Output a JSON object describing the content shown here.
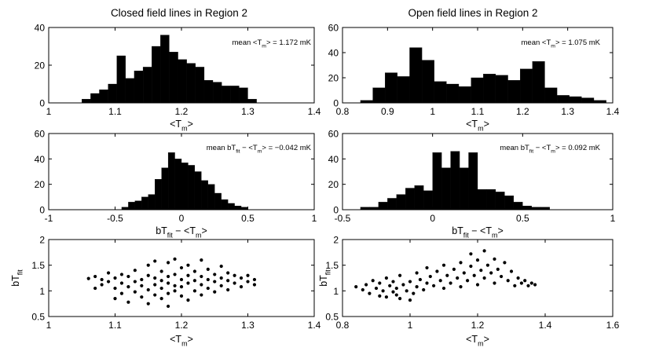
{
  "chart_data": [
    {
      "type": "bar",
      "title": "Closed field lines in Region 2",
      "xlabel": "<T_m>",
      "annotation": "mean <T_m> = 1.172 mK",
      "xlim": [
        1,
        1.4
      ],
      "ylim": [
        0,
        40
      ],
      "xticks": [
        1,
        1.1,
        1.2,
        1.3,
        1.4
      ],
      "yticks": [
        0,
        20,
        40
      ],
      "bin_width": 0.01316,
      "bin_starts": [
        1.05,
        1.0632,
        1.0763,
        1.0895,
        1.1026,
        1.1158,
        1.1289,
        1.1421,
        1.1553,
        1.1684,
        1.1816,
        1.1947,
        1.2079,
        1.2211,
        1.2342,
        1.2474,
        1.2605,
        1.2737,
        1.2868,
        1.3
      ],
      "values": [
        2,
        5,
        7,
        10,
        25,
        13,
        17,
        19,
        30,
        36,
        27,
        23,
        21,
        19,
        12,
        11,
        9,
        9,
        8,
        2
      ]
    },
    {
      "type": "bar",
      "title": "Open field lines in Region 2",
      "xlabel": "<T_m>",
      "annotation": "mean <T_m> = 1.075 mK",
      "xlim": [
        0.8,
        1.4
      ],
      "ylim": [
        0,
        60
      ],
      "xticks": [
        0.8,
        0.9,
        1,
        1.1,
        1.2,
        1.3,
        1.4
      ],
      "yticks": [
        0,
        20,
        40,
        60
      ],
      "bin_width": 0.02727,
      "bin_starts": [
        0.84,
        0.8673,
        0.8945,
        0.9218,
        0.9491,
        0.9764,
        1.0036,
        1.0309,
        1.0582,
        1.0855,
        1.1127,
        1.14,
        1.1673,
        1.1945,
        1.2218,
        1.2491,
        1.2764,
        1.3036,
        1.3309,
        1.3582
      ],
      "values": [
        2,
        12,
        24,
        21,
        44,
        34,
        17,
        15,
        13,
        20,
        23,
        22,
        18,
        27,
        33,
        12,
        6,
        5,
        4,
        2
      ]
    },
    {
      "type": "bar",
      "xlabel": "bT_fit − <T_m>",
      "annotation": "mean bT_fit − <T_m> = −0.042 mK",
      "xlim": [
        -1,
        1
      ],
      "ylim": [
        0,
        60
      ],
      "xticks": [
        -1,
        -0.5,
        0,
        0.5,
        1
      ],
      "yticks": [
        0,
        20,
        40,
        60
      ],
      "bin_width": 0.05,
      "bin_starts": [
        -0.45,
        -0.4,
        -0.35,
        -0.3,
        -0.25,
        -0.2,
        -0.15,
        -0.1,
        -0.05,
        0,
        0.05,
        0.1,
        0.15,
        0.2,
        0.25,
        0.3,
        0.35,
        0.4,
        0.45
      ],
      "values": [
        2,
        6,
        7,
        10,
        12,
        24,
        33,
        45,
        40,
        37,
        35,
        30,
        23,
        20,
        13,
        8,
        5,
        3,
        2
      ]
    },
    {
      "type": "bar",
      "xlabel": "bT_fit − <T_m>",
      "annotation": "mean bT_fit − <T_m> = 0.092 mK",
      "xlim": [
        -0.5,
        1
      ],
      "ylim": [
        0,
        60
      ],
      "xticks": [
        -0.5,
        0,
        0.5,
        1
      ],
      "yticks": [
        0,
        20,
        40,
        60
      ],
      "bin_width": 0.05,
      "bin_starts": [
        -0.4,
        -0.35,
        -0.3,
        -0.25,
        -0.2,
        -0.15,
        -0.1,
        -0.05,
        0,
        0.05,
        0.1,
        0.15,
        0.2,
        0.25,
        0.3,
        0.35,
        0.4,
        0.45,
        0.5,
        0.55,
        0.6
      ],
      "values": [
        2,
        2,
        6,
        9,
        12,
        17,
        19,
        15,
        45,
        33,
        46,
        33,
        45,
        16,
        16,
        14,
        11,
        6,
        3,
        2,
        2
      ]
    },
    {
      "type": "scatter",
      "xlabel": "<T_m>",
      "ylabel": "bT_fit",
      "xlim": [
        1,
        1.4
      ],
      "ylim": [
        0.5,
        2
      ],
      "xticks": [
        1,
        1.1,
        1.2,
        1.3,
        1.4
      ],
      "yticks": [
        0.5,
        1,
        1.5,
        2
      ],
      "points": [
        [
          1.06,
          1.24
        ],
        [
          1.07,
          1.28
        ],
        [
          1.08,
          1.22
        ],
        [
          1.09,
          1.35
        ],
        [
          1.08,
          1.12
        ],
        [
          1.07,
          1.05
        ],
        [
          1.09,
          1.18
        ],
        [
          1.1,
          0.85
        ],
        [
          1.1,
          1.05
        ],
        [
          1.1,
          1.25
        ],
        [
          1.11,
          1.32
        ],
        [
          1.11,
          0.95
        ],
        [
          1.11,
          1.15
        ],
        [
          1.12,
          0.78
        ],
        [
          1.12,
          1.08
        ],
        [
          1.12,
          1.28
        ],
        [
          1.13,
          0.98
        ],
        [
          1.13,
          1.18
        ],
        [
          1.13,
          1.4
        ],
        [
          1.14,
          0.88
        ],
        [
          1.14,
          1.1
        ],
        [
          1.14,
          1.22
        ],
        [
          1.15,
          0.75
        ],
        [
          1.15,
          1.02
        ],
        [
          1.15,
          1.3
        ],
        [
          1.15,
          1.5
        ],
        [
          1.16,
          0.92
        ],
        [
          1.16,
          1.12
        ],
        [
          1.16,
          1.25
        ],
        [
          1.16,
          1.58
        ],
        [
          1.17,
          0.85
        ],
        [
          1.17,
          1.05
        ],
        [
          1.17,
          1.2
        ],
        [
          1.17,
          1.38
        ],
        [
          1.18,
          0.95
        ],
        [
          1.18,
          1.15
        ],
        [
          1.18,
          1.28
        ],
        [
          1.18,
          1.55
        ],
        [
          1.18,
          0.7
        ],
        [
          1.19,
          1.0
        ],
        [
          1.19,
          1.1
        ],
        [
          1.19,
          1.32
        ],
        [
          1.19,
          1.62
        ],
        [
          1.2,
          0.9
        ],
        [
          1.2,
          1.08
        ],
        [
          1.2,
          1.22
        ],
        [
          1.2,
          1.45
        ],
        [
          1.21,
          0.82
        ],
        [
          1.21,
          1.15
        ],
        [
          1.21,
          1.3
        ],
        [
          1.21,
          1.5
        ],
        [
          1.22,
          1.0
        ],
        [
          1.22,
          1.2
        ],
        [
          1.22,
          1.38
        ],
        [
          1.23,
          0.92
        ],
        [
          1.23,
          1.12
        ],
        [
          1.23,
          1.28
        ],
        [
          1.23,
          1.6
        ],
        [
          1.24,
          1.05
        ],
        [
          1.24,
          1.22
        ],
        [
          1.24,
          1.42
        ],
        [
          1.25,
          0.98
        ],
        [
          1.25,
          1.18
        ],
        [
          1.25,
          1.32
        ],
        [
          1.26,
          1.1
        ],
        [
          1.26,
          1.25
        ],
        [
          1.26,
          1.48
        ],
        [
          1.27,
          1.02
        ],
        [
          1.27,
          1.2
        ],
        [
          1.27,
          1.35
        ],
        [
          1.28,
          1.15
        ],
        [
          1.28,
          1.3
        ],
        [
          1.29,
          1.08
        ],
        [
          1.29,
          1.25
        ],
        [
          1.3,
          1.18
        ],
        [
          1.3,
          1.3
        ],
        [
          1.31,
          1.12
        ],
        [
          1.31,
          1.22
        ]
      ]
    },
    {
      "type": "scatter",
      "xlabel": "<T_m>",
      "ylabel": "bT_fit",
      "xlim": [
        0.8,
        1.6
      ],
      "ylim": [
        0.5,
        2
      ],
      "xticks": [
        0.8,
        1,
        1.2,
        1.4,
        1.6
      ],
      "yticks": [
        0.5,
        1,
        1.5,
        2
      ],
      "points": [
        [
          0.84,
          1.08
        ],
        [
          0.86,
          1.02
        ],
        [
          0.87,
          1.12
        ],
        [
          0.88,
          0.95
        ],
        [
          0.89,
          1.2
        ],
        [
          0.9,
          1.05
        ],
        [
          0.91,
          0.9
        ],
        [
          0.91,
          1.15
        ],
        [
          0.92,
          1.0
        ],
        [
          0.93,
          1.25
        ],
        [
          0.93,
          0.88
        ],
        [
          0.94,
          1.1
        ],
        [
          0.95,
          0.98
        ],
        [
          0.95,
          1.18
        ],
        [
          0.96,
          0.92
        ],
        [
          0.96,
          1.05
        ],
        [
          0.97,
          1.3
        ],
        [
          0.97,
          0.85
        ],
        [
          0.98,
          1.12
        ],
        [
          0.99,
          1.0
        ],
        [
          1.0,
          0.82
        ],
        [
          1.0,
          1.18
        ],
        [
          1.01,
          0.95
        ],
        [
          1.02,
          1.08
        ],
        [
          1.02,
          1.35
        ],
        [
          1.03,
          1.22
        ],
        [
          1.04,
          1.02
        ],
        [
          1.05,
          1.15
        ],
        [
          1.05,
          1.45
        ],
        [
          1.06,
          1.28
        ],
        [
          1.07,
          1.1
        ],
        [
          1.08,
          1.38
        ],
        [
          1.09,
          1.2
        ],
        [
          1.1,
          1.05
        ],
        [
          1.1,
          1.5
        ],
        [
          1.11,
          1.3
        ],
        [
          1.12,
          1.15
        ],
        [
          1.13,
          1.42
        ],
        [
          1.14,
          1.25
        ],
        [
          1.15,
          1.08
        ],
        [
          1.15,
          1.55
        ],
        [
          1.16,
          1.35
        ],
        [
          1.17,
          1.2
        ],
        [
          1.18,
          1.48
        ],
        [
          1.18,
          1.72
        ],
        [
          1.19,
          1.3
        ],
        [
          1.2,
          1.12
        ],
        [
          1.2,
          1.6
        ],
        [
          1.21,
          1.4
        ],
        [
          1.22,
          1.25
        ],
        [
          1.22,
          1.78
        ],
        [
          1.23,
          1.5
        ],
        [
          1.24,
          1.35
        ],
        [
          1.25,
          1.15
        ],
        [
          1.25,
          1.62
        ],
        [
          1.26,
          1.42
        ],
        [
          1.27,
          1.28
        ],
        [
          1.28,
          1.55
        ],
        [
          1.29,
          1.2
        ],
        [
          1.3,
          1.38
        ],
        [
          1.31,
          1.1
        ],
        [
          1.32,
          1.25
        ],
        [
          1.33,
          1.15
        ],
        [
          1.34,
          1.2
        ],
        [
          1.35,
          1.1
        ],
        [
          1.36,
          1.15
        ],
        [
          1.37,
          1.12
        ]
      ]
    }
  ]
}
